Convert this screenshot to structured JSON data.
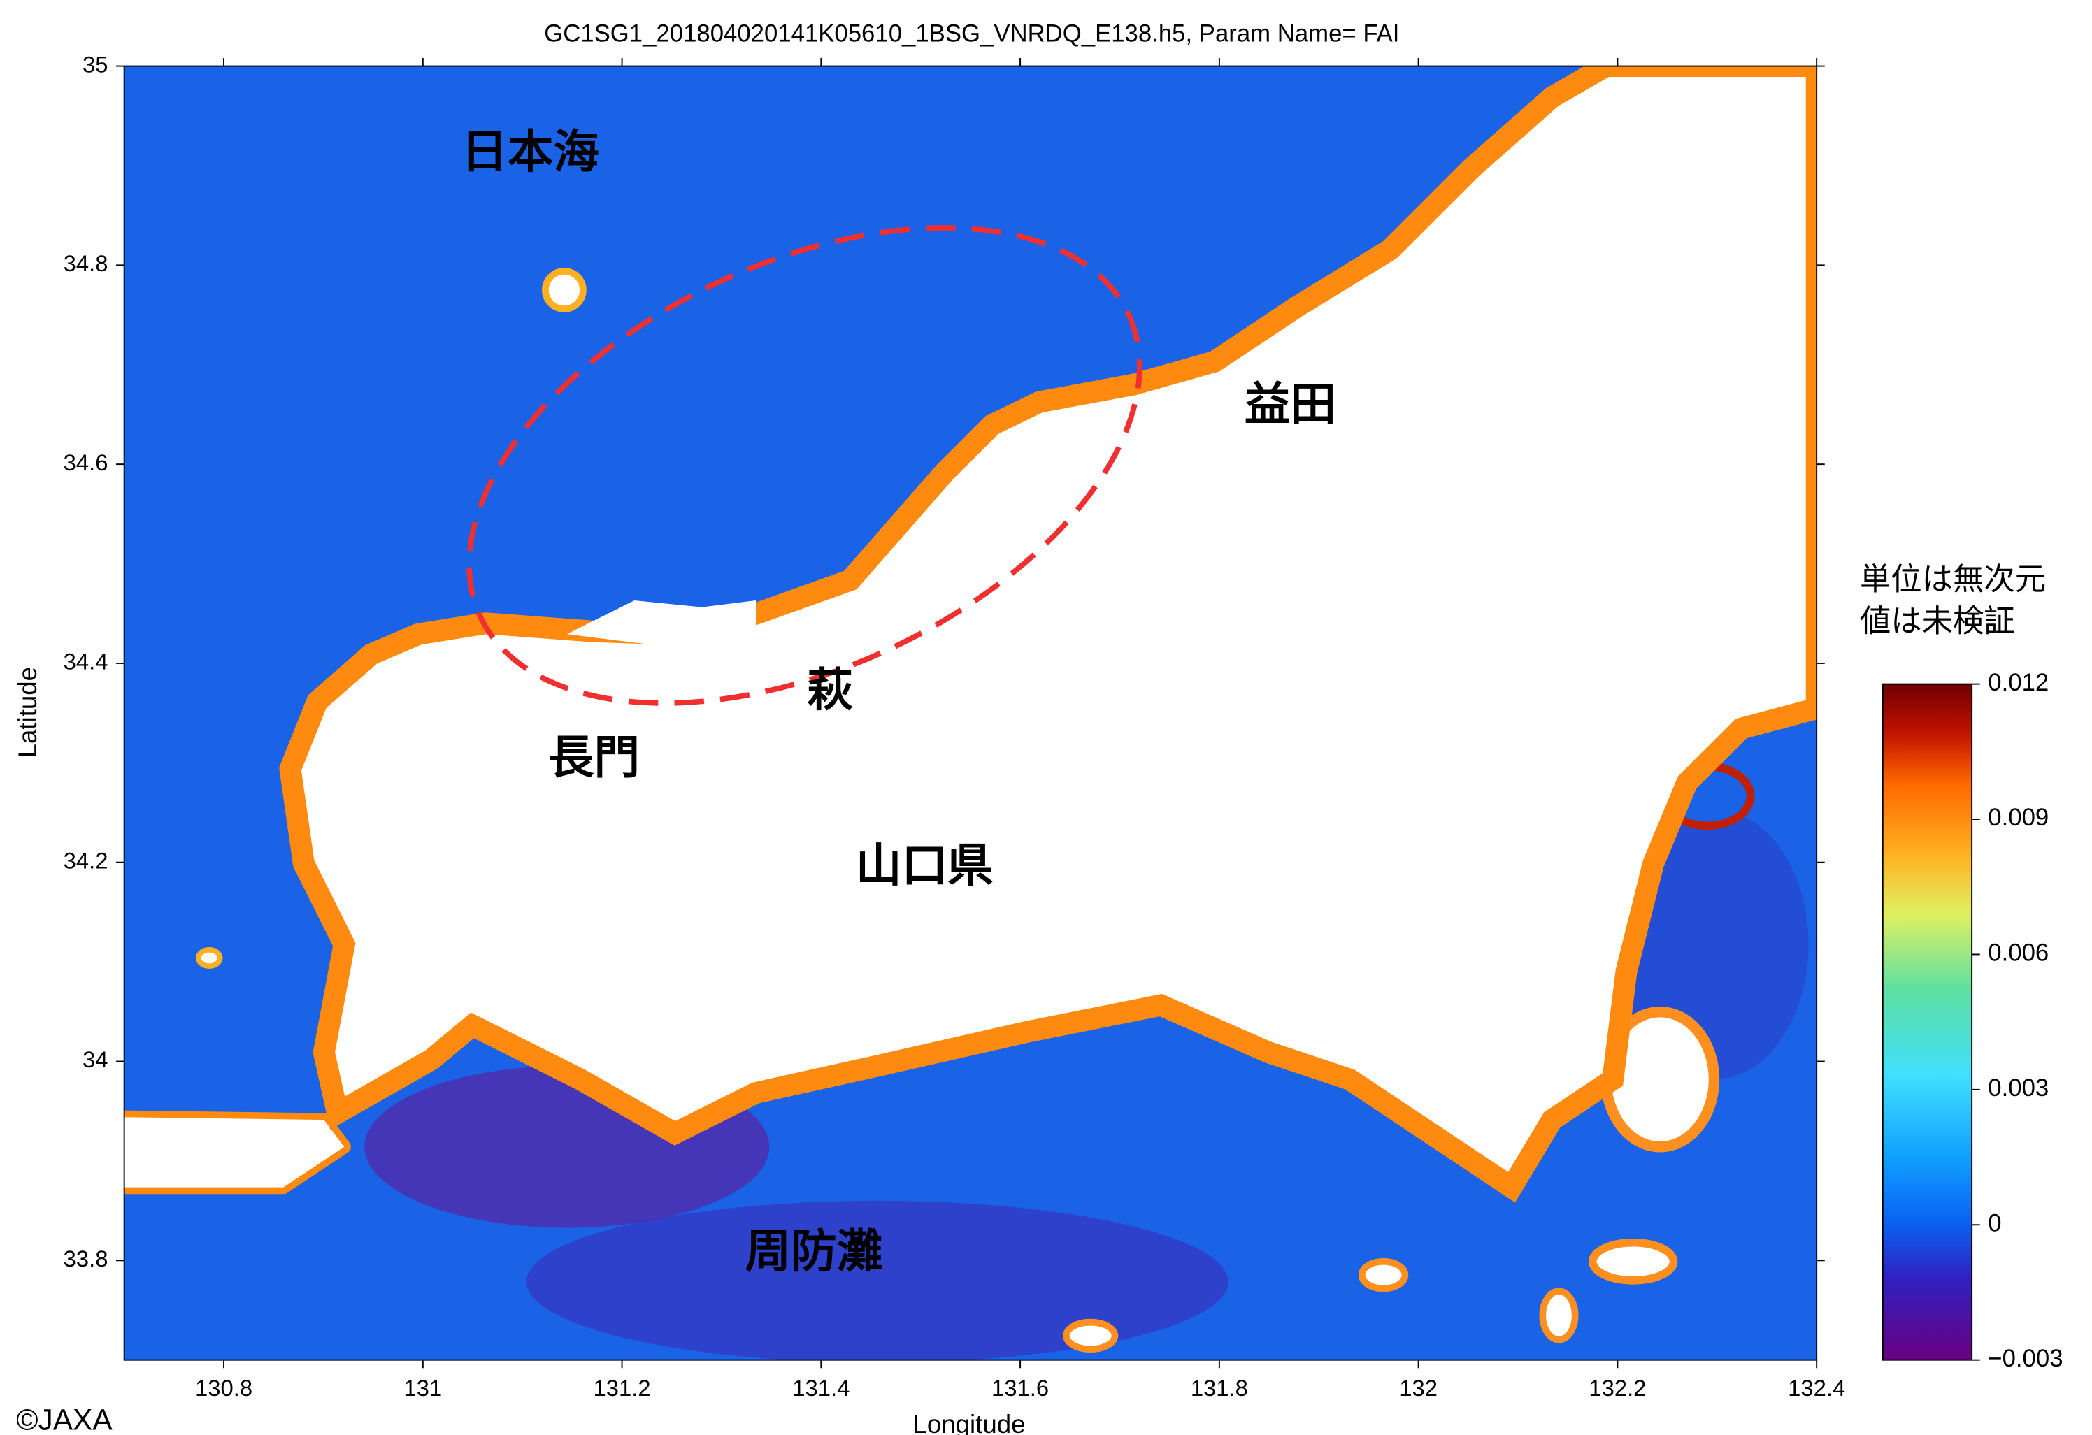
{
  "chart_data": {
    "type": "map",
    "title": "GC1SG1_201804020141K05610_1BSG_VNRDQ_E138.h5, Param Name= FAI",
    "x_label": "Longitude",
    "y_label": "Latitude",
    "xlim": [
      130.7,
      132.4
    ],
    "ylim": [
      33.7,
      35
    ],
    "xticks": [
      130.8,
      131,
      131.2,
      131.4,
      131.6,
      131.8,
      132,
      132.2,
      132.4
    ],
    "yticks": [
      33.8,
      34,
      34.2,
      34.4,
      34.6,
      34.8,
      35
    ],
    "colorbar": {
      "label": [
        "単位は無次元",
        "値は未検証"
      ],
      "lim": [
        -0.003,
        0.012
      ],
      "ticks": [
        {
          "value": -0.003,
          "label": "−0.003"
        },
        0,
        0.003,
        0.006,
        0.009,
        0.012
      ]
    },
    "annotations": [
      "日本海",
      "益田",
      "萩",
      "長門",
      "山口県",
      "周防灘"
    ],
    "copyright": "©JAXA"
  }
}
